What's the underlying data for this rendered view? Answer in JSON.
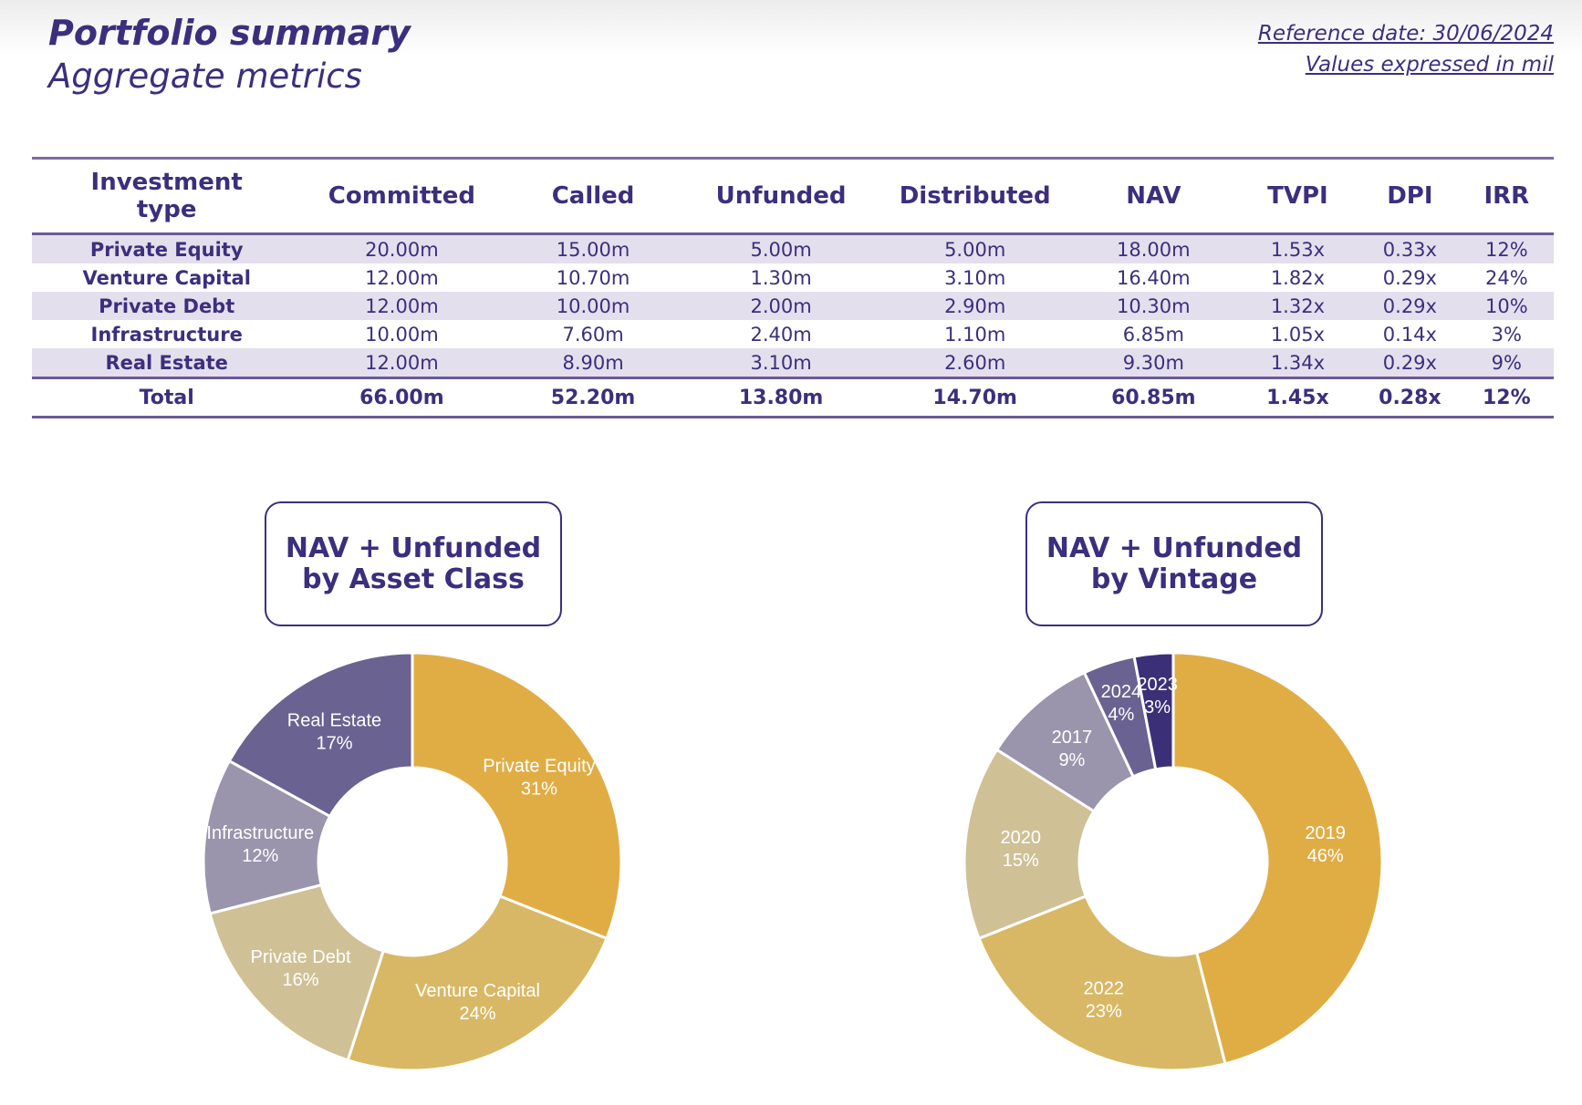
{
  "header": {
    "title": "Portfolio summary",
    "subtitle": "Aggregate metrics",
    "reference_date": "Reference date: 30/06/2024",
    "units_note": "Values expressed in mil"
  },
  "table": {
    "columns": [
      "Investment type",
      "Committed",
      "Called",
      "Unfunded",
      "Distributed",
      "NAV",
      "TVPI",
      "DPI",
      "IRR"
    ],
    "rows": [
      [
        "Private Equity",
        "20.00m",
        "15.00m",
        "5.00m",
        "5.00m",
        "18.00m",
        "1.53x",
        "0.33x",
        "12%"
      ],
      [
        "Venture Capital",
        "12.00m",
        "10.70m",
        "1.30m",
        "3.10m",
        "16.40m",
        "1.82x",
        "0.29x",
        "24%"
      ],
      [
        "Private Debt",
        "12.00m",
        "10.00m",
        "2.00m",
        "2.90m",
        "10.30m",
        "1.32x",
        "0.29x",
        "10%"
      ],
      [
        "Infrastructure",
        "10.00m",
        "7.60m",
        "2.40m",
        "1.10m",
        "6.85m",
        "1.05x",
        "0.14x",
        "3%"
      ],
      [
        "Real Estate",
        "12.00m",
        "8.90m",
        "3.10m",
        "2.60m",
        "9.30m",
        "1.34x",
        "0.29x",
        "9%"
      ]
    ],
    "total": [
      "Total",
      "66.00m",
      "52.20m",
      "13.80m",
      "14.70m",
      "60.85m",
      "1.45x",
      "0.28x",
      "12%"
    ]
  },
  "chart_data": [
    {
      "type": "pie",
      "donut": true,
      "title": "NAV + Unfunded by Asset Class",
      "categories": [
        "Private Equity",
        "Venture Capital",
        "Private Debt",
        "Infrastructure",
        "Real Estate"
      ],
      "values": [
        31,
        24,
        16,
        12,
        17
      ],
      "labels": [
        "31%",
        "24%",
        "16%",
        "12%",
        "17%"
      ],
      "colors": [
        "#e0ad45",
        "#d8b865",
        "#cfc096",
        "#9a94ac",
        "#6a6291"
      ]
    },
    {
      "type": "pie",
      "donut": true,
      "title": "NAV + Unfunded by Vintage",
      "categories": [
        "2019",
        "2022",
        "2020",
        "2017",
        "2024",
        "2023"
      ],
      "values": [
        46,
        23,
        15,
        9,
        4,
        3
      ],
      "labels": [
        "46%",
        "23%",
        "15%",
        "9%",
        "4%",
        "3%"
      ],
      "colors": [
        "#e0ad45",
        "#d8b865",
        "#cfc096",
        "#9a94ac",
        "#6a6291",
        "#3b3078"
      ]
    }
  ]
}
